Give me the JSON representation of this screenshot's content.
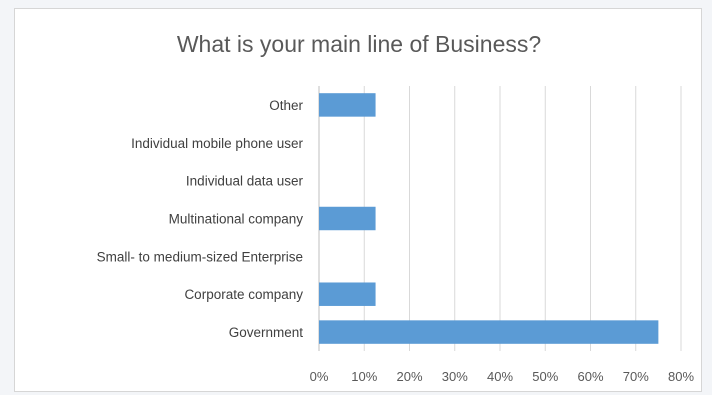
{
  "chart_data": {
    "type": "bar",
    "orientation": "horizontal",
    "title": "What is your main line of Business?",
    "categories": [
      "Other",
      "Individual mobile phone user",
      "Individual data user",
      "Multinational company",
      "Small- to medium-sized Enterprise",
      "Corporate company",
      "Government"
    ],
    "values": [
      12.5,
      0,
      0,
      12.5,
      0,
      12.5,
      75
    ],
    "xlim": [
      0,
      80
    ],
    "x_ticks": [
      "0%",
      "10%",
      "20%",
      "30%",
      "40%",
      "50%",
      "60%",
      "70%",
      "80%"
    ],
    "xlabel": "",
    "ylabel": "",
    "grid": "vertical",
    "legend": "none",
    "bar_color": "#5b9bd5",
    "grid_color": "#d9d9d9"
  }
}
